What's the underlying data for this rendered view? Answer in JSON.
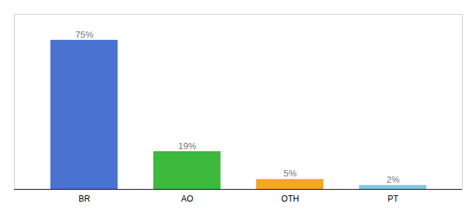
{
  "chart_data": {
    "type": "bar",
    "categories": [
      "BR",
      "AO",
      "OTH",
      "PT"
    ],
    "values": [
      75,
      19,
      5,
      2
    ],
    "value_labels": [
      "75%",
      "19%",
      "5%",
      "2%"
    ],
    "colors": [
      "#4a72d1",
      "#3dba3d",
      "#f5a623",
      "#7ec8e3"
    ],
    "ylim": [
      0,
      88
    ],
    "data_labels": true,
    "tick_labels": "x"
  }
}
